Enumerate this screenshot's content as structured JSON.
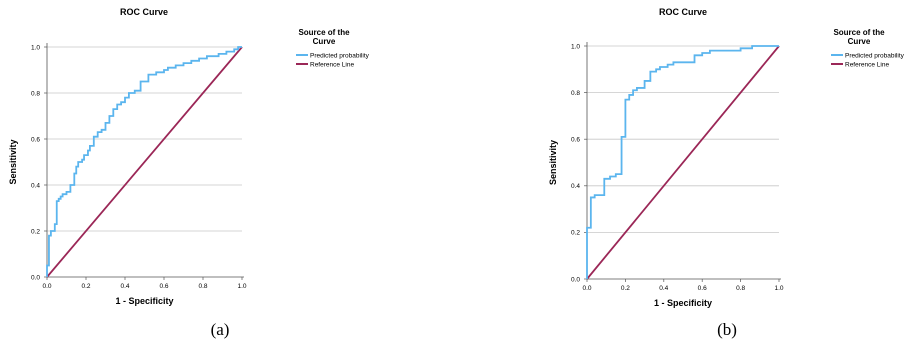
{
  "chart_data": [
    {
      "type": "line",
      "panel": "a",
      "title": "ROC Curve",
      "xlabel": "1 - Specificity",
      "ylabel": "Sensitivity",
      "xlim": [
        0,
        1
      ],
      "ylim": [
        0,
        1
      ],
      "x_ticks": [
        "0.0",
        "0.2",
        "0.4",
        "0.6",
        "0.8",
        "1.0"
      ],
      "y_ticks": [
        "0.0",
        "0.2",
        "0.4",
        "0.6",
        "0.8",
        "1.0"
      ],
      "grid": "horizontal",
      "legend_title": "Source of the Curve",
      "legend_placement": "right",
      "caption": "(a)",
      "series": [
        {
          "name": "Predicted probability",
          "color": "#5bb5ee",
          "x": [
            0.0,
            0.0,
            0.01,
            0.01,
            0.02,
            0.02,
            0.04,
            0.04,
            0.05,
            0.05,
            0.06,
            0.06,
            0.07,
            0.07,
            0.08,
            0.08,
            0.1,
            0.1,
            0.12,
            0.12,
            0.14,
            0.14,
            0.15,
            0.15,
            0.16,
            0.16,
            0.18,
            0.18,
            0.19,
            0.19,
            0.21,
            0.21,
            0.22,
            0.22,
            0.24,
            0.24,
            0.26,
            0.26,
            0.28,
            0.28,
            0.3,
            0.3,
            0.32,
            0.32,
            0.34,
            0.34,
            0.36,
            0.36,
            0.38,
            0.38,
            0.4,
            0.4,
            0.42,
            0.42,
            0.45,
            0.45,
            0.48,
            0.48,
            0.52,
            0.52,
            0.56,
            0.56,
            0.58,
            0.58,
            0.6,
            0.6,
            0.62,
            0.62,
            0.66,
            0.66,
            0.7,
            0.7,
            0.74,
            0.74,
            0.78,
            0.78,
            0.82,
            0.82,
            0.88,
            0.88,
            0.92,
            0.92,
            0.96,
            0.96,
            0.98,
            0.98,
            1.0
          ],
          "y": [
            0.0,
            0.05,
            0.05,
            0.18,
            0.18,
            0.2,
            0.2,
            0.23,
            0.23,
            0.33,
            0.33,
            0.34,
            0.34,
            0.35,
            0.35,
            0.36,
            0.36,
            0.37,
            0.37,
            0.4,
            0.4,
            0.45,
            0.45,
            0.48,
            0.48,
            0.5,
            0.5,
            0.51,
            0.51,
            0.53,
            0.53,
            0.55,
            0.55,
            0.57,
            0.57,
            0.61,
            0.61,
            0.63,
            0.63,
            0.64,
            0.64,
            0.67,
            0.67,
            0.7,
            0.7,
            0.73,
            0.73,
            0.75,
            0.75,
            0.76,
            0.76,
            0.78,
            0.78,
            0.8,
            0.8,
            0.81,
            0.81,
            0.85,
            0.85,
            0.88,
            0.88,
            0.89,
            0.89,
            0.89,
            0.89,
            0.9,
            0.9,
            0.91,
            0.91,
            0.92,
            0.92,
            0.93,
            0.93,
            0.94,
            0.94,
            0.95,
            0.95,
            0.96,
            0.96,
            0.97,
            0.97,
            0.98,
            0.98,
            0.99,
            0.99,
            1.0,
            1.0
          ]
        },
        {
          "name": "Reference Line",
          "color": "#9b2757",
          "x": [
            0.0,
            1.0
          ],
          "y": [
            0.0,
            1.0
          ]
        }
      ]
    },
    {
      "type": "line",
      "panel": "b",
      "title": "ROC Curve",
      "xlabel": "1 - Specificity",
      "ylabel": "Sensitivity",
      "xlim": [
        0,
        1
      ],
      "ylim": [
        0,
        1
      ],
      "x_ticks": [
        "0.0",
        "0.2",
        "0.4",
        "0.6",
        "0.8",
        "1.0"
      ],
      "y_ticks": [
        "0.0",
        "0.2",
        "0.4",
        "0.6",
        "0.8",
        "1.0"
      ],
      "grid": "horizontal",
      "legend_title": "Source of the Curve",
      "legend_placement": "right",
      "caption": "(b)",
      "series": [
        {
          "name": "Predicted probability",
          "color": "#5bb5ee",
          "x": [
            0.0,
            0.0,
            0.02,
            0.02,
            0.04,
            0.04,
            0.06,
            0.06,
            0.09,
            0.09,
            0.12,
            0.12,
            0.15,
            0.15,
            0.18,
            0.18,
            0.2,
            0.2,
            0.22,
            0.22,
            0.24,
            0.24,
            0.26,
            0.26,
            0.3,
            0.3,
            0.33,
            0.33,
            0.36,
            0.36,
            0.38,
            0.38,
            0.42,
            0.42,
            0.45,
            0.45,
            0.5,
            0.5,
            0.56,
            0.56,
            0.6,
            0.6,
            0.64,
            0.64,
            0.7,
            0.7,
            0.8,
            0.8,
            0.86,
            0.86,
            1.0
          ],
          "y": [
            0.0,
            0.22,
            0.22,
            0.35,
            0.35,
            0.36,
            0.36,
            0.36,
            0.36,
            0.43,
            0.43,
            0.44,
            0.44,
            0.45,
            0.45,
            0.61,
            0.61,
            0.77,
            0.77,
            0.79,
            0.79,
            0.81,
            0.81,
            0.82,
            0.82,
            0.85,
            0.85,
            0.89,
            0.89,
            0.9,
            0.9,
            0.91,
            0.91,
            0.92,
            0.92,
            0.93,
            0.93,
            0.93,
            0.93,
            0.96,
            0.96,
            0.97,
            0.97,
            0.98,
            0.98,
            0.98,
            0.98,
            0.99,
            0.99,
            1.0,
            1.0
          ]
        },
        {
          "name": "Reference Line",
          "color": "#9b2757",
          "x": [
            0.0,
            1.0
          ],
          "y": [
            0.0,
            1.0
          ]
        }
      ]
    }
  ]
}
